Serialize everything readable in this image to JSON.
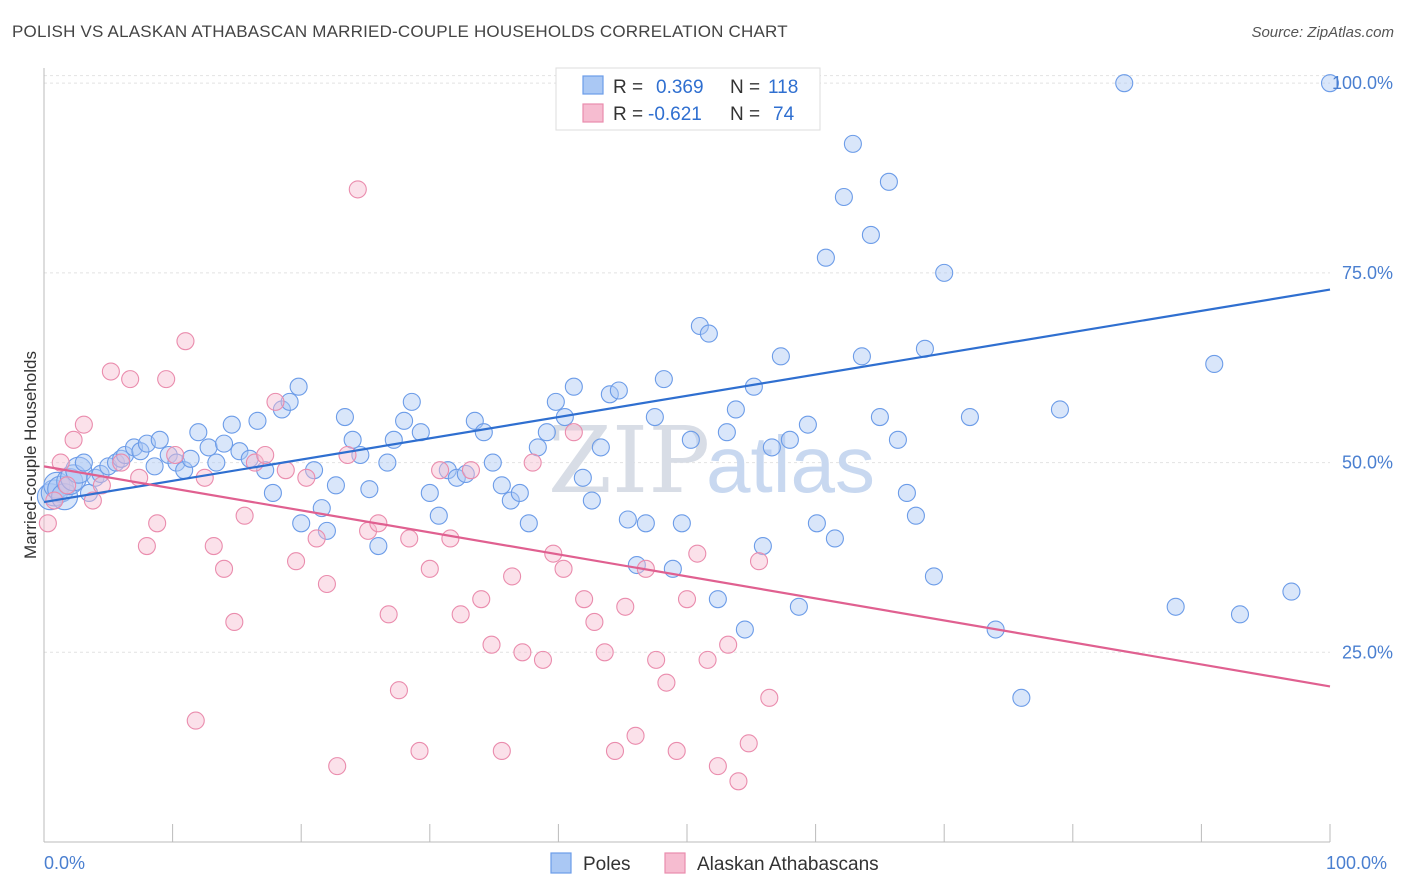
{
  "header": {
    "title": "POLISH VS ALASKAN ATHABASCAN MARRIED-COUPLE HOUSEHOLDS CORRELATION CHART",
    "source": "Source: ZipAtlas.com"
  },
  "watermark": {
    "zip": "ZIP",
    "atlas": "atlas"
  },
  "legend": {
    "r_label": "R =",
    "n_label": "N =",
    "rows": [
      {
        "r": "0.369",
        "n": "118"
      },
      {
        "r": "-0.621",
        "n": "74"
      }
    ]
  },
  "chart_data": {
    "type": "scatter",
    "title": "POLISH VS ALASKAN ATHABASCAN MARRIED-COUPLE HOUSEHOLDS CORRELATION CHART",
    "xlabel": "",
    "ylabel": "Married-couple Households",
    "xlim": [
      0,
      100
    ],
    "ylim": [
      0,
      102
    ],
    "x_tick_labels": [
      "0.0%",
      "100.0%"
    ],
    "y_tick_labels": [
      "25.0%",
      "50.0%",
      "75.0%",
      "100.0%"
    ],
    "y_ticks": [
      25,
      50,
      75,
      100
    ],
    "grid": true,
    "legend_position": "top-center",
    "series": [
      {
        "name": "Poles",
        "color": "#6c9ce8",
        "fill": "#aac8f4",
        "line_color": "#2f6fd0",
        "trend": [
          [
            0,
            44.8
          ],
          [
            100,
            72.8
          ]
        ],
        "points": [
          [
            0.5,
            45.5
          ],
          [
            0.8,
            46
          ],
          [
            1,
            47
          ],
          [
            1.3,
            46.5
          ],
          [
            1.6,
            45.5
          ],
          [
            2,
            47.5
          ],
          [
            2.3,
            48
          ],
          [
            2.7,
            49
          ],
          [
            3.1,
            50
          ],
          [
            3.5,
            46
          ],
          [
            4,
            48
          ],
          [
            4.4,
            48.5
          ],
          [
            5,
            49.5
          ],
          [
            5.6,
            50
          ],
          [
            6,
            50.5
          ],
          [
            6.3,
            51
          ],
          [
            7,
            52
          ],
          [
            7.5,
            51.5
          ],
          [
            8,
            52.5
          ],
          [
            8.6,
            49.5
          ],
          [
            9,
            53
          ],
          [
            9.7,
            51
          ],
          [
            10.3,
            50
          ],
          [
            10.9,
            49
          ],
          [
            11.4,
            50.5
          ],
          [
            12,
            54
          ],
          [
            12.8,
            52
          ],
          [
            13.4,
            50
          ],
          [
            14,
            52.5
          ],
          [
            14.6,
            55
          ],
          [
            15.2,
            51.5
          ],
          [
            16,
            50.5
          ],
          [
            16.6,
            55.5
          ],
          [
            17.2,
            49
          ],
          [
            17.8,
            46
          ],
          [
            18.5,
            57
          ],
          [
            19.1,
            58
          ],
          [
            19.8,
            60
          ],
          [
            20,
            42
          ],
          [
            21,
            49
          ],
          [
            21.6,
            44
          ],
          [
            22,
            41
          ],
          [
            22.7,
            47
          ],
          [
            23.4,
            56
          ],
          [
            24,
            53
          ],
          [
            24.6,
            51
          ],
          [
            25.3,
            46.5
          ],
          [
            26,
            39
          ],
          [
            26.7,
            50
          ],
          [
            27.2,
            53
          ],
          [
            28,
            55.5
          ],
          [
            28.6,
            58
          ],
          [
            29.3,
            54
          ],
          [
            30,
            46
          ],
          [
            30.7,
            43
          ],
          [
            31.4,
            49
          ],
          [
            32.1,
            48
          ],
          [
            32.8,
            48.5
          ],
          [
            33.5,
            55.5
          ],
          [
            34.2,
            54
          ],
          [
            34.9,
            50
          ],
          [
            35.6,
            47
          ],
          [
            36.3,
            45
          ],
          [
            37,
            46
          ],
          [
            37.7,
            42
          ],
          [
            38.4,
            52
          ],
          [
            39.1,
            54
          ],
          [
            39.8,
            58
          ],
          [
            40.5,
            56
          ],
          [
            41.2,
            60
          ],
          [
            41.9,
            48
          ],
          [
            42.6,
            45
          ],
          [
            43.3,
            52
          ],
          [
            44,
            59
          ],
          [
            44.7,
            59.5
          ],
          [
            45.4,
            42.5
          ],
          [
            46.1,
            36.5
          ],
          [
            46.8,
            42
          ],
          [
            47.5,
            56
          ],
          [
            48.2,
            61
          ],
          [
            48.9,
            36
          ],
          [
            49.6,
            42
          ],
          [
            50.3,
            53
          ],
          [
            51,
            68
          ],
          [
            51.7,
            67
          ],
          [
            52.4,
            32
          ],
          [
            53.1,
            54
          ],
          [
            53.8,
            57
          ],
          [
            54.5,
            28
          ],
          [
            55.2,
            60
          ],
          [
            55.9,
            39
          ],
          [
            56.6,
            52
          ],
          [
            57.3,
            64
          ],
          [
            58,
            53
          ],
          [
            58.7,
            31
          ],
          [
            59.4,
            55
          ],
          [
            60.1,
            42
          ],
          [
            60.8,
            77
          ],
          [
            61.5,
            40
          ],
          [
            62.2,
            85
          ],
          [
            62.9,
            92
          ],
          [
            63.6,
            64
          ],
          [
            64.3,
            80
          ],
          [
            65,
            56
          ],
          [
            65.7,
            87
          ],
          [
            66.4,
            53
          ],
          [
            67.1,
            46
          ],
          [
            67.8,
            43
          ],
          [
            68.5,
            65
          ],
          [
            69.2,
            35
          ],
          [
            70,
            75
          ],
          [
            72,
            56
          ],
          [
            74,
            28
          ],
          [
            76,
            19
          ],
          [
            79,
            57
          ],
          [
            84,
            100
          ],
          [
            88,
            31
          ],
          [
            91,
            63
          ],
          [
            93,
            30
          ],
          [
            97,
            33
          ],
          [
            100,
            100
          ]
        ]
      },
      {
        "name": "Alaskan Athabascans",
        "color": "#ea8cad",
        "fill": "#f6bcd0",
        "line_color": "#e06090",
        "trend": [
          [
            0,
            49.5
          ],
          [
            100,
            20.5
          ]
        ],
        "points": [
          [
            0.3,
            42
          ],
          [
            0.8,
            45
          ],
          [
            1.3,
            50
          ],
          [
            1.8,
            47
          ],
          [
            2.3,
            53
          ],
          [
            3.1,
            55
          ],
          [
            3.8,
            45
          ],
          [
            4.5,
            47
          ],
          [
            5.2,
            62
          ],
          [
            6,
            50
          ],
          [
            6.7,
            61
          ],
          [
            7.4,
            48
          ],
          [
            8,
            39
          ],
          [
            8.8,
            42
          ],
          [
            9.5,
            61
          ],
          [
            10.2,
            51
          ],
          [
            11,
            66
          ],
          [
            11.8,
            16
          ],
          [
            12.5,
            48
          ],
          [
            13.2,
            39
          ],
          [
            14,
            36
          ],
          [
            14.8,
            29
          ],
          [
            15.6,
            43
          ],
          [
            16.4,
            50
          ],
          [
            17.2,
            51
          ],
          [
            18,
            58
          ],
          [
            18.8,
            49
          ],
          [
            19.6,
            37
          ],
          [
            20.4,
            48
          ],
          [
            21.2,
            40
          ],
          [
            22,
            34
          ],
          [
            22.8,
            10
          ],
          [
            23.6,
            51
          ],
          [
            24.4,
            86
          ],
          [
            25.2,
            41
          ],
          [
            26,
            42
          ],
          [
            26.8,
            30
          ],
          [
            27.6,
            20
          ],
          [
            28.4,
            40
          ],
          [
            29.2,
            12
          ],
          [
            30,
            36
          ],
          [
            30.8,
            49
          ],
          [
            31.6,
            40
          ],
          [
            32.4,
            30
          ],
          [
            33.2,
            49
          ],
          [
            34,
            32
          ],
          [
            34.8,
            26
          ],
          [
            35.6,
            12
          ],
          [
            36.4,
            35
          ],
          [
            37.2,
            25
          ],
          [
            38,
            50
          ],
          [
            38.8,
            24
          ],
          [
            39.6,
            38
          ],
          [
            40.4,
            36
          ],
          [
            41.2,
            54
          ],
          [
            42,
            32
          ],
          [
            42.8,
            29
          ],
          [
            43.6,
            25
          ],
          [
            44.4,
            12
          ],
          [
            45.2,
            31
          ],
          [
            46,
            14
          ],
          [
            46.8,
            36
          ],
          [
            47.6,
            24
          ],
          [
            48.4,
            21
          ],
          [
            49.2,
            12
          ],
          [
            50,
            32
          ],
          [
            50.8,
            38
          ],
          [
            51.6,
            24
          ],
          [
            52.4,
            10
          ],
          [
            53.2,
            26
          ],
          [
            54,
            8
          ],
          [
            54.8,
            13
          ],
          [
            55.6,
            37
          ],
          [
            56.4,
            19
          ]
        ]
      }
    ]
  },
  "bottom_legend": [
    {
      "label": "Poles"
    },
    {
      "label": "Alaskan Athabascans"
    }
  ]
}
